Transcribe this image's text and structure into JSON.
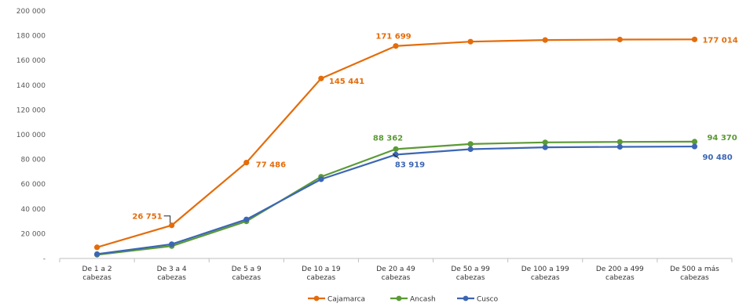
{
  "chart_data": {
    "type": "line",
    "title": "",
    "xlabel": "",
    "ylabel": "",
    "ylim": [
      0,
      200000
    ],
    "y_ticks": [
      "-",
      "20 000",
      "40 000",
      "60 000",
      "80 000",
      "100 000",
      "120 000",
      "140 000",
      "160 000",
      "180 000",
      "200 000"
    ],
    "categories": [
      [
        "De 1 a 2",
        "cabezas"
      ],
      [
        "De 3 a 4",
        "cabezas"
      ],
      [
        "De 5 a 9",
        "cabezas"
      ],
      [
        "De 10 a 19",
        "cabezas"
      ],
      [
        "De 20 a 49",
        "cabezas"
      ],
      [
        "De 50 a 99",
        "cabezas"
      ],
      [
        "De 100 a 199",
        "cabezas"
      ],
      [
        "De 200 a 499",
        "cabezas"
      ],
      [
        "De 500 a más",
        "cabezas"
      ]
    ],
    "grid": false,
    "legend_position": "bottom",
    "series": [
      {
        "name": "Cajamarca",
        "color": "#E46C0A",
        "values": [
          9000,
          26751,
          77486,
          145441,
          171699,
          175200,
          176500,
          176900,
          177014
        ]
      },
      {
        "name": "Ancash",
        "color": "#5B9A35",
        "values": [
          3000,
          10000,
          30000,
          66000,
          88362,
          92500,
          93800,
          94200,
          94370
        ]
      },
      {
        "name": "Cusco",
        "color": "#3C66B4",
        "values": [
          3500,
          11500,
          31500,
          64000,
          83919,
          88300,
          89800,
          90200,
          90480
        ]
      }
    ],
    "data_labels": [
      {
        "series": 0,
        "index": 1,
        "text": "26 751"
      },
      {
        "series": 0,
        "index": 2,
        "text": "77 486"
      },
      {
        "series": 0,
        "index": 3,
        "text": "145 441"
      },
      {
        "series": 0,
        "index": 4,
        "text": "171 699"
      },
      {
        "series": 0,
        "index": 8,
        "text": "177 014"
      },
      {
        "series": 1,
        "index": 4,
        "text": "88 362"
      },
      {
        "series": 1,
        "index": 8,
        "text": "94 370"
      },
      {
        "series": 2,
        "index": 4,
        "text": "83 919"
      },
      {
        "series": 2,
        "index": 8,
        "text": "90 480"
      }
    ]
  }
}
